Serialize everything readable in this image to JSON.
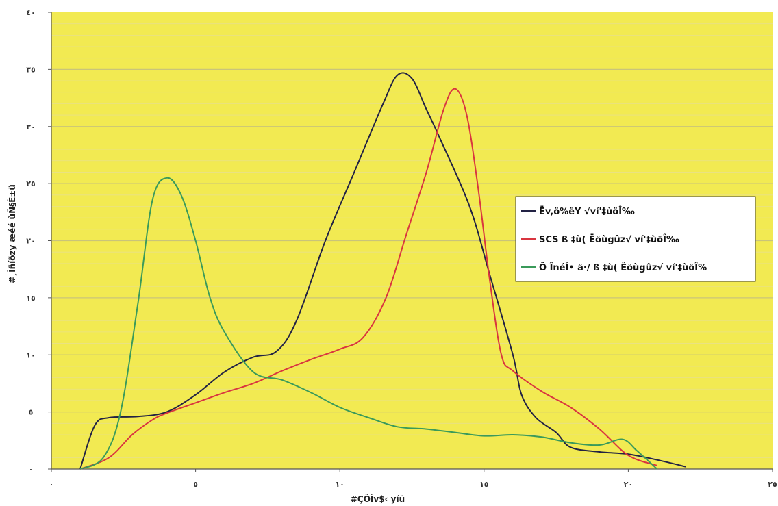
{
  "chart_data": {
    "type": "line",
    "xlabel": "#ÇÕÌv$‹ yíü",
    "ylabel": "#¸Îñíõzy æéé ùÑ§Ë±ü",
    "xlim": [
      0,
      25
    ],
    "ylim": [
      0,
      40
    ],
    "x_ticks": [
      "٠",
      "٥",
      "١٠",
      "١٥",
      "٢٠",
      "٢٥"
    ],
    "y_ticks": [
      "٠",
      "٥",
      "١٠",
      "١٥",
      "٢٠",
      "٢٥",
      "٣٠",
      "٣٥",
      "٤٠"
    ],
    "grid": true,
    "plot_background": "#f2ea52",
    "legend_position": "right",
    "series": [
      {
        "name": "Ëv,ö%ëY √ví'‡ùöÎ‰",
        "color": "#222244",
        "points": [
          [
            1,
            0
          ],
          [
            1.5,
            3.8
          ],
          [
            2,
            4.5
          ],
          [
            3,
            4.6
          ],
          [
            4,
            5
          ],
          [
            5,
            6.5
          ],
          [
            6,
            8.5
          ],
          [
            7,
            9.8
          ],
          [
            7.8,
            10.3
          ],
          [
            8.5,
            13
          ],
          [
            9.5,
            20
          ],
          [
            10.5,
            26
          ],
          [
            11.5,
            32
          ],
          [
            12,
            34.5
          ],
          [
            12.5,
            34.2
          ],
          [
            13,
            31.5
          ],
          [
            13.5,
            28.8
          ],
          [
            14.5,
            23
          ],
          [
            15.2,
            17
          ],
          [
            16,
            10
          ],
          [
            16.3,
            6.5
          ],
          [
            16.8,
            4.5
          ],
          [
            17.5,
            3.2
          ],
          [
            18,
            1.9
          ],
          [
            19,
            1.5
          ],
          [
            20,
            1.3
          ],
          [
            21,
            0.8
          ],
          [
            22,
            0.2
          ]
        ]
      },
      {
        "name": "SCS ß ‡ù( Ëöùgûz√ ví'‡ùöÎ‰",
        "color": "#d9353f",
        "points": [
          [
            1,
            0
          ],
          [
            2,
            1
          ],
          [
            2.8,
            3
          ],
          [
            3.5,
            4.3
          ],
          [
            4,
            4.9
          ],
          [
            5,
            5.8
          ],
          [
            6,
            6.7
          ],
          [
            7,
            7.5
          ],
          [
            8,
            8.6
          ],
          [
            9,
            9.6
          ],
          [
            10,
            10.5
          ],
          [
            10.8,
            11.5
          ],
          [
            11.6,
            15
          ],
          [
            12.3,
            20.5
          ],
          [
            13,
            26
          ],
          [
            13.6,
            31.5
          ],
          [
            14,
            33.3
          ],
          [
            14.4,
            31
          ],
          [
            14.8,
            24.5
          ],
          [
            15.2,
            16.5
          ],
          [
            15.6,
            10
          ],
          [
            16,
            8.6
          ],
          [
            17,
            6.8
          ],
          [
            18,
            5.4
          ],
          [
            19,
            3.5
          ],
          [
            20,
            1.2
          ],
          [
            21,
            0.3
          ]
        ]
      },
      {
        "name": "Õ ÎñéÍ• ä·/ ß ‡ù( Ëöùgûz√ ví'‡ùöÎ%",
        "color": "#3a9a5a",
        "points": [
          [
            1,
            0
          ],
          [
            1.8,
            1
          ],
          [
            2.4,
            5
          ],
          [
            3,
            14.5
          ],
          [
            3.5,
            23.5
          ],
          [
            4,
            25.5
          ],
          [
            4.5,
            24
          ],
          [
            5,
            20
          ],
          [
            5.5,
            15
          ],
          [
            6,
            12
          ],
          [
            7,
            8.5
          ],
          [
            8,
            7.8
          ],
          [
            9,
            6.7
          ],
          [
            10,
            5.4
          ],
          [
            11,
            4.5
          ],
          [
            12,
            3.7
          ],
          [
            13,
            3.5
          ],
          [
            14,
            3.2
          ],
          [
            15,
            2.9
          ],
          [
            16,
            3
          ],
          [
            17,
            2.8
          ],
          [
            18,
            2.3
          ],
          [
            19,
            2.1
          ],
          [
            19.8,
            2.6
          ],
          [
            20.3,
            1.6
          ],
          [
            21,
            0
          ]
        ]
      }
    ]
  }
}
